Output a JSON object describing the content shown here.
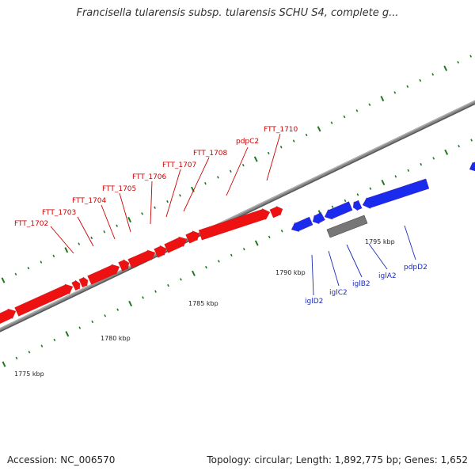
{
  "title": "Francisella tularensis subsp. tularensis SCHU S4, complete g...",
  "footer": {
    "accession": "Accession: NC_006570",
    "summary": "Topology: circular; Length: 1,892,775 bp; Genes: 1,652"
  },
  "colors": {
    "forward_gene": "#ee1111",
    "reverse_gene": "#1a2bee",
    "other_feature": "#777777",
    "backbone": "#888888",
    "tick": "#1f7a1f",
    "forward_label": "#cc0000",
    "reverse_label": "#1a2bbb"
  },
  "scale_labels": [
    "1775 kbp",
    "1780 kbp",
    "1785 kbp",
    "1790 kbp",
    "1795 kbp"
  ],
  "forward_labels": [
    "FTT_1702",
    "FTT_1703",
    "FTT_1704",
    "FTT_1705",
    "FTT_1706",
    "FTT_1707",
    "FTT_1708",
    "pdpC2",
    "FTT_1710"
  ],
  "reverse_labels": [
    "iglD2",
    "iglC2",
    "iglB2",
    "iglA2",
    "pdpD2"
  ]
}
